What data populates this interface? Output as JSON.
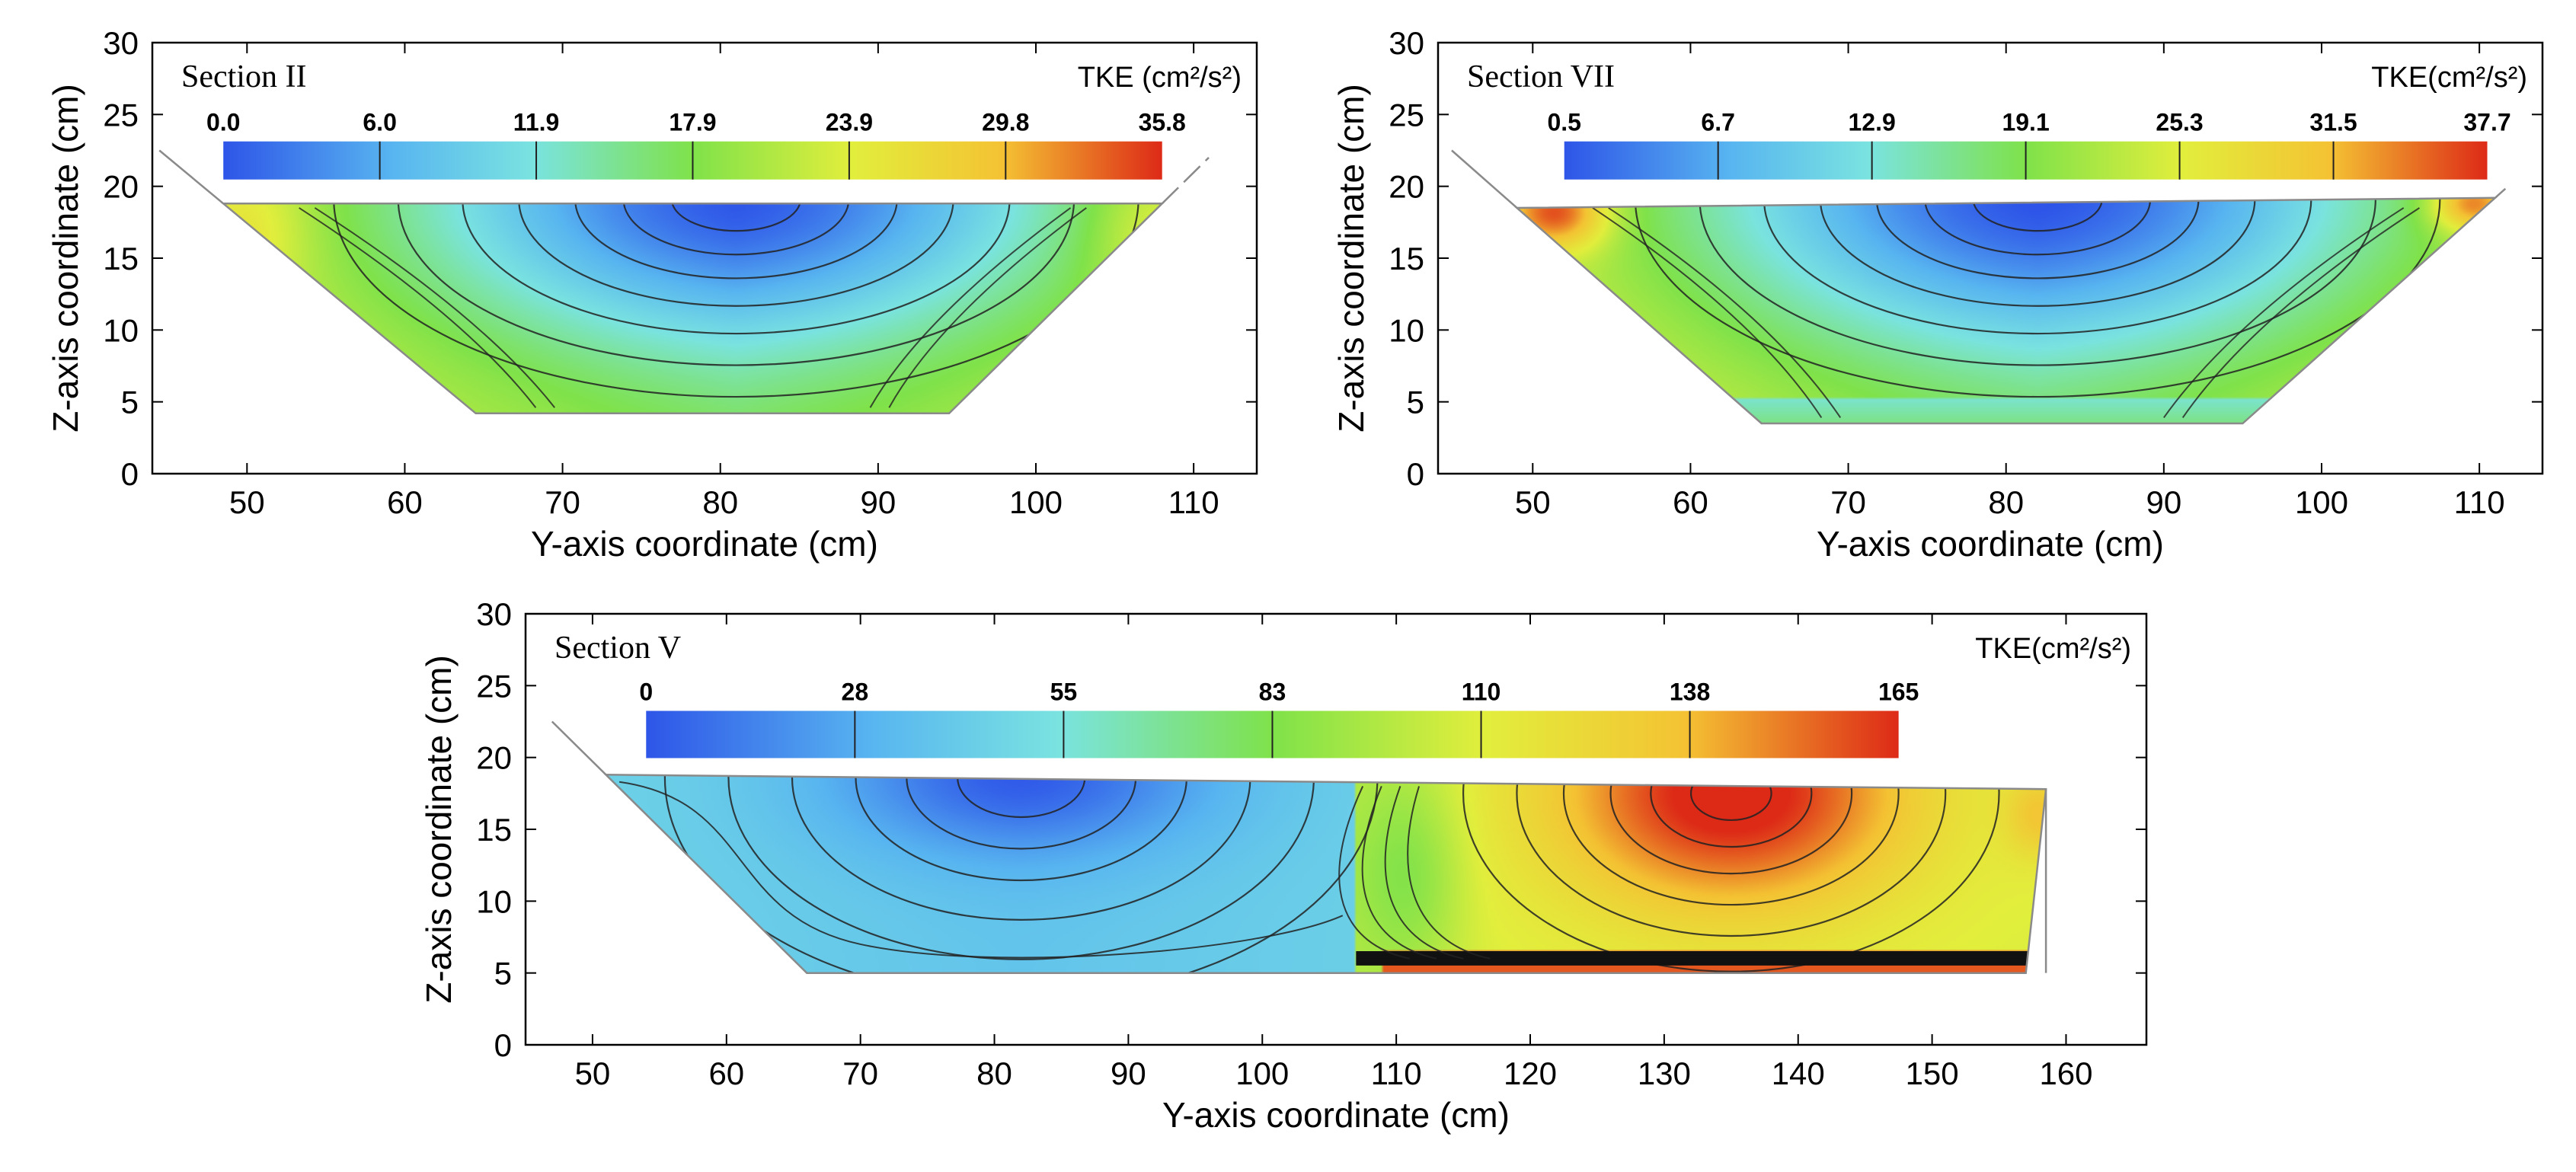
{
  "chart_data": [
    {
      "type": "heatmap",
      "section_label": "Section II",
      "colorbar_title": "TKE (cm²/s²)",
      "colorbar_ticks": [
        "0.0",
        "6.0",
        "11.9",
        "17.9",
        "23.9",
        "29.8",
        "35.8"
      ],
      "tke_range": [
        0.0,
        35.8
      ],
      "xlabel": "Y-axis coordinate (cm)",
      "ylabel": "Z-axis coordinate (cm)",
      "x_ticks": [
        "50",
        "60",
        "70",
        "80",
        "90",
        "100",
        "110"
      ],
      "y_ticks": [
        "0",
        "5",
        "10",
        "15",
        "20",
        "25",
        "30"
      ],
      "xlim": [
        44,
        114
      ],
      "ylim": [
        0,
        30
      ],
      "grid": false,
      "channel": {
        "bed_y": [
          64.5,
          94.5
        ],
        "bed_z": 4.2,
        "surface_z_left": 18.8,
        "surface_z_right": 18.8,
        "bank_top_y": [
          48.5,
          108
        ]
      },
      "low_tke_core": {
        "y": 81,
        "z": 18.5,
        "value": 0.0
      },
      "high_tke_regions": [
        {
          "y": 50,
          "z": 17,
          "value": 29.8
        },
        {
          "y": 106,
          "z": 17,
          "value": 29.8
        }
      ]
    },
    {
      "type": "heatmap",
      "section_label": "Section VII",
      "colorbar_title": "TKE(cm²/s²)",
      "colorbar_ticks": [
        "0.5",
        "6.7",
        "12.9",
        "19.1",
        "25.3",
        "31.5",
        "37.7"
      ],
      "tke_range": [
        0.5,
        37.7
      ],
      "xlabel": "Y-axis coordinate (cm)",
      "ylabel": "Z-axis coordinate (cm)",
      "x_ticks": [
        "50",
        "60",
        "70",
        "80",
        "90",
        "100",
        "110"
      ],
      "y_ticks": [
        "0",
        "5",
        "10",
        "15",
        "20",
        "25",
        "30"
      ],
      "xlim": [
        44,
        114
      ],
      "ylim": [
        0,
        30
      ],
      "grid": false,
      "channel": {
        "bed_y": [
          64.5,
          95
        ],
        "bed_z": 3.5,
        "surface_z_left": 18.5,
        "surface_z_right": 19.2,
        "bank_top_y": [
          49,
          111
        ]
      },
      "low_tke_core": {
        "y": 82,
        "z": 18.5,
        "value": 0.5
      },
      "high_tke_regions": [
        {
          "y": 52,
          "z": 17.5,
          "value": 37.7
        },
        {
          "y": 109,
          "z": 18.5,
          "value": 37.7
        }
      ]
    },
    {
      "type": "heatmap",
      "section_label": "Section V",
      "colorbar_title": "TKE(cm²/s²)",
      "colorbar_ticks": [
        "0",
        "28",
        "55",
        "83",
        "110",
        "138",
        "165"
      ],
      "tke_range": [
        0,
        165
      ],
      "xlabel": "Y-axis coordinate (cm)",
      "ylabel": "Z-axis coordinate (cm)",
      "x_ticks": [
        "50",
        "60",
        "70",
        "80",
        "90",
        "100",
        "110",
        "120",
        "130",
        "140",
        "150",
        "160"
      ],
      "y_ticks": [
        "0",
        "5",
        "10",
        "15",
        "20",
        "25",
        "30"
      ],
      "xlim": [
        45,
        166
      ],
      "ylim": [
        0,
        30
      ],
      "grid": false,
      "channel": {
        "bed_y": [
          66,
          157
        ],
        "bed_z": 5.0,
        "surface_z_left": 18.8,
        "surface_z_right": 17.8,
        "bank_top_y": [
          51,
          158.5
        ]
      },
      "low_tke_core": {
        "y": 82,
        "z": 18.0,
        "value": 0
      },
      "high_tke_regions": [
        {
          "y": 135,
          "z": 16.5,
          "value": 165
        }
      ],
      "zones": [
        {
          "y_range": [
            51,
            107
          ],
          "level": "low"
        },
        {
          "y_range": [
            107,
            158.5
          ],
          "level": "high"
        }
      ]
    }
  ]
}
